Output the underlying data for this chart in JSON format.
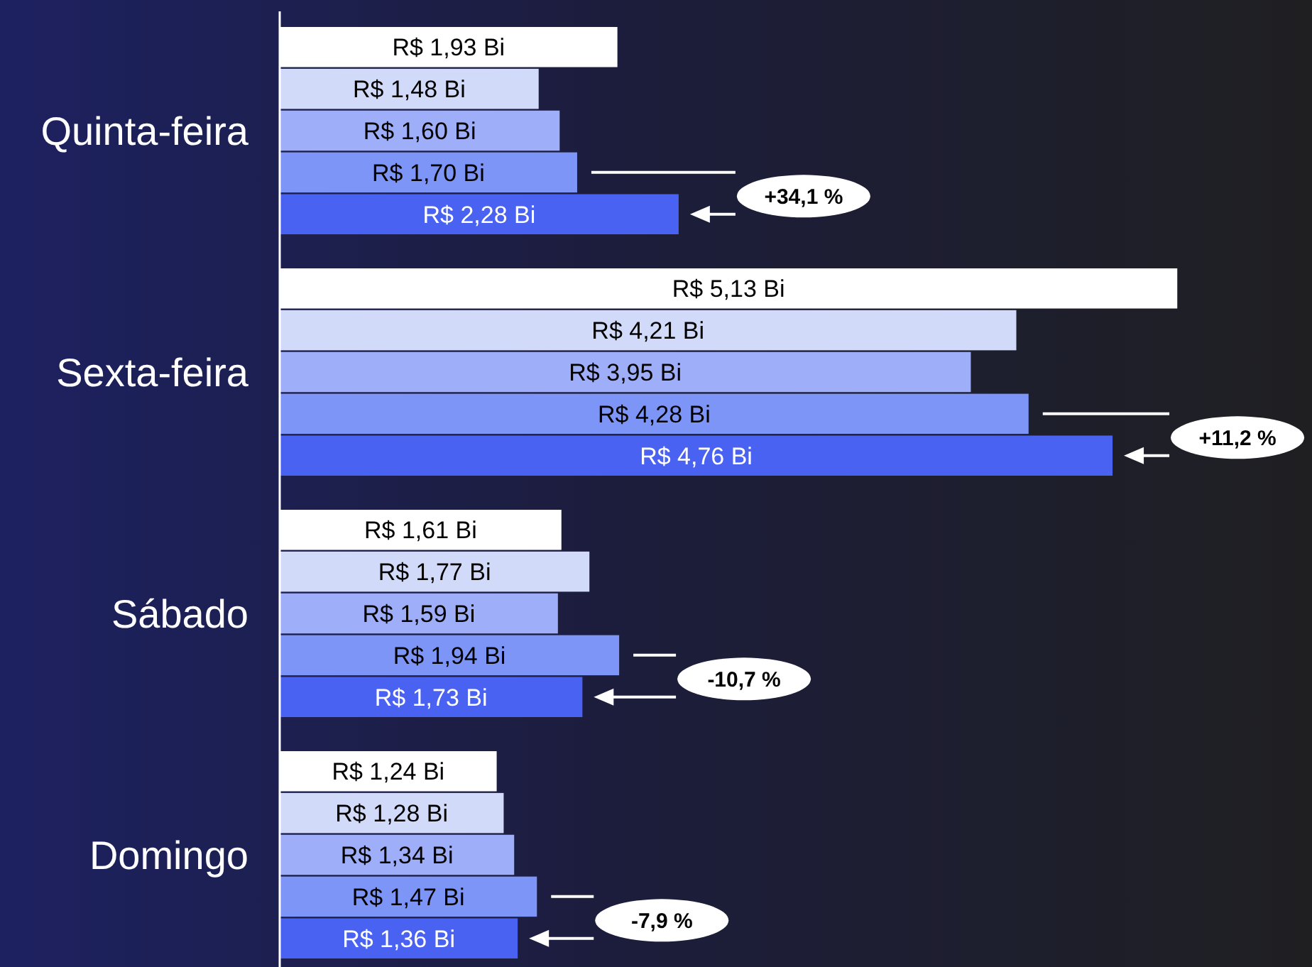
{
  "chart_data": {
    "type": "bar",
    "orientation": "horizontal",
    "categories": [
      "Quinta-feira",
      "Sexta-feira",
      "Sábado",
      "Domingo"
    ],
    "series": [
      {
        "color": "#ffffff",
        "values": [
          1.93,
          5.13,
          1.61,
          1.24
        ],
        "value_labels": [
          "R$ 1,93 Bi",
          "R$ 5,13 Bi",
          "R$ 1,61 Bi",
          "R$ 1,24 Bi"
        ]
      },
      {
        "color": "#d2dafa",
        "values": [
          1.48,
          4.21,
          1.77,
          1.28
        ],
        "value_labels": [
          "R$ 1,48 Bi",
          "R$ 4,21 Bi",
          "R$ 1,77 Bi",
          "R$ 1,28 Bi"
        ]
      },
      {
        "color": "#9eaef8",
        "values": [
          1.6,
          3.95,
          1.59,
          1.34
        ],
        "value_labels": [
          "R$ 1,60 Bi",
          "R$ 3,95 Bi",
          "R$ 1,59 Bi",
          "R$ 1,34 Bi"
        ]
      },
      {
        "color": "#7d95f6",
        "values": [
          1.7,
          4.28,
          1.94,
          1.47
        ],
        "value_labels": [
          "R$ 1,70 Bi",
          "R$ 4,28 Bi",
          "R$ 1,94 Bi",
          "R$ 1,47 Bi"
        ]
      },
      {
        "color": "#4a62f2",
        "values": [
          2.28,
          4.76,
          1.73,
          1.36
        ],
        "value_labels": [
          "R$ 2,28 Bi",
          "R$ 4,76 Bi",
          "R$ 1,73 Bi",
          "R$ 1,36 Bi"
        ]
      }
    ],
    "xlim": [
      0,
      5.9
    ],
    "tick_labels": "y",
    "annotations": [
      "+34,1 %",
      "+11,2 %",
      "-10,7 %",
      "-7,9 %"
    ]
  }
}
